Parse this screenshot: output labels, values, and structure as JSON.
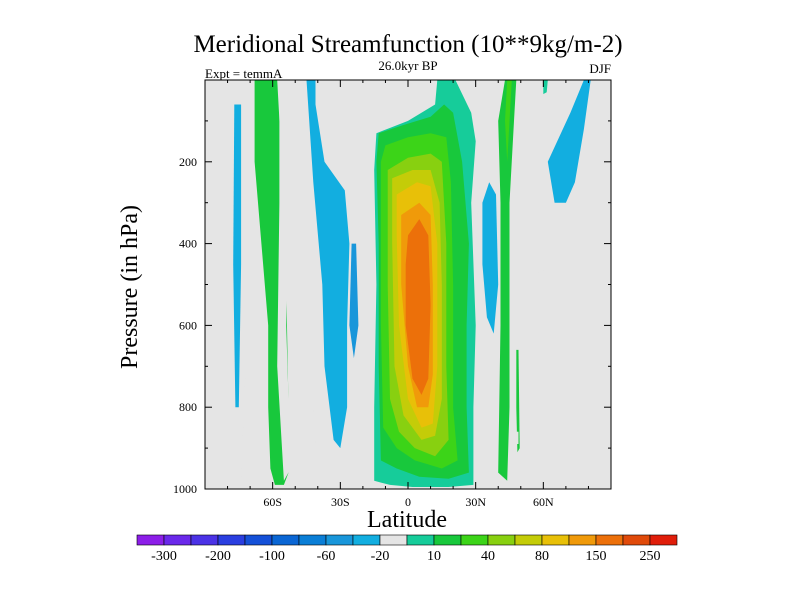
{
  "chart_data": {
    "type": "contour",
    "title": "Meridional Streamfunction (10**9kg/m-2)",
    "left_string": "Expt = temmA",
    "center_string": "26.0kyr BP",
    "right_string": "DJF",
    "xlabel": "Latitude",
    "ylabel": "Pressure (in hPa)",
    "xlim": [
      -90,
      90
    ],
    "ylim": [
      1000,
      0
    ],
    "x_ticks": [
      -60,
      -30,
      0,
      30,
      60
    ],
    "x_tick_labels": [
      "60S",
      "30S",
      "0",
      "30N",
      "60N"
    ],
    "y_ticks": [
      200,
      400,
      600,
      800,
      1000
    ],
    "y_tick_labels": [
      "200",
      "400",
      "600",
      "800",
      "1000"
    ],
    "background_color": "#e5e5e5",
    "colorbar": {
      "levels": [
        -300,
        -250,
        -200,
        -150,
        -100,
        -80,
        -60,
        -40,
        -20,
        -10,
        10,
        20,
        40,
        60,
        80,
        100,
        150,
        200,
        250,
        300
      ],
      "labels": [
        "-300",
        "-200",
        "-100",
        "-60",
        "-20",
        "10",
        "40",
        "80",
        "150",
        "250"
      ],
      "colors": [
        "#8c1ee8",
        "#6a28ea",
        "#4b32e6",
        "#2a3ee0",
        "#1450d8",
        "#0a66d4",
        "#0a7ed6",
        "#1896da",
        "#12aee0",
        "#e5e5e5",
        "#16cc9a",
        "#18c83c",
        "#3cd418",
        "#88d010",
        "#c4cc08",
        "#e8c008",
        "#f09a0a",
        "#ec700a",
        "#e04a0a",
        "#e01e0a"
      ]
    },
    "regions": [
      {
        "name": "south-polar-cell-outer",
        "level": -10,
        "outline": [
          [
            -78,
            0
          ],
          [
            -72,
            0
          ],
          [
            -72,
            400
          ],
          [
            -72,
            700
          ],
          [
            -74,
            980
          ],
          [
            -77,
            980
          ],
          [
            -78,
            800
          ],
          [
            -80,
            600
          ],
          [
            -79,
            300
          ]
        ]
      },
      {
        "name": "south-polar-cell-inner",
        "level": -20,
        "outline": [
          [
            -77,
            60
          ],
          [
            -74,
            60
          ],
          [
            -74,
            450
          ],
          [
            -75,
            800
          ],
          [
            -76.5,
            800
          ],
          [
            -77.5,
            450
          ]
        ]
      },
      {
        "name": "southern-ferrel-cell",
        "level": 20,
        "outline": [
          [
            -68,
            0
          ],
          [
            -58,
            0
          ],
          [
            -56,
            200
          ],
          [
            -54,
            500
          ],
          [
            -53,
            800
          ],
          [
            -53,
            960
          ],
          [
            -55,
            990
          ],
          [
            -59,
            990
          ],
          [
            -61,
            950
          ],
          [
            -62,
            800
          ],
          [
            -62,
            600
          ],
          [
            -65,
            400
          ],
          [
            -68,
            200
          ]
        ]
      },
      {
        "name": "south-midlat-negative",
        "level": -10,
        "outline": [
          [
            -57,
            0
          ],
          [
            -40,
            0
          ],
          [
            -40,
            60
          ],
          [
            -30,
            140
          ],
          [
            -22,
            230
          ],
          [
            -20,
            400
          ],
          [
            -22,
            600
          ],
          [
            -20,
            800
          ],
          [
            -18,
            960
          ],
          [
            -24,
            980
          ],
          [
            -35,
            980
          ],
          [
            -40,
            950
          ],
          [
            -42,
            800
          ],
          [
            -40,
            600
          ],
          [
            -45,
            300
          ],
          [
            -50,
            100
          ],
          [
            -53,
            200
          ],
          [
            -54,
            600
          ],
          [
            -52,
            950
          ],
          [
            -55,
            980
          ],
          [
            -58,
            700
          ],
          [
            -57,
            300
          ]
        ]
      },
      {
        "name": "south-midlat-negative-core",
        "level": -20,
        "outline": [
          [
            -45,
            0
          ],
          [
            -41,
            0
          ],
          [
            -41,
            60
          ],
          [
            -37,
            200
          ],
          [
            -28,
            270
          ],
          [
            -26,
            400
          ],
          [
            -27,
            600
          ],
          [
            -27,
            800
          ],
          [
            -30,
            900
          ],
          [
            -33,
            880
          ],
          [
            -37,
            700
          ],
          [
            -38,
            500
          ],
          [
            -42,
            250
          ]
        ]
      },
      {
        "name": "south-midlat-negative-core2",
        "level": -40,
        "outline": [
          [
            -25,
            400
          ],
          [
            -23,
            400
          ],
          [
            -22,
            600
          ],
          [
            -24,
            680
          ],
          [
            -26,
            600
          ]
        ]
      },
      {
        "name": "equatorial-negative-tongue",
        "level": -10,
        "outline": [
          [
            -3,
            0
          ],
          [
            3,
            0
          ],
          [
            2,
            60
          ],
          [
            -2,
            60
          ]
        ]
      },
      {
        "name": "hadley-cell-10",
        "level": 10,
        "outline": [
          [
            -15,
            220
          ],
          [
            -14,
            130
          ],
          [
            0,
            100
          ],
          [
            12,
            60
          ],
          [
            13,
            0
          ],
          [
            21,
            0
          ],
          [
            28,
            80
          ],
          [
            30,
            150
          ],
          [
            28,
            300
          ],
          [
            30,
            600
          ],
          [
            29,
            800
          ],
          [
            29,
            990
          ],
          [
            18,
            995
          ],
          [
            2,
            995
          ],
          [
            -8,
            990
          ],
          [
            -15,
            980
          ],
          [
            -15,
            800
          ],
          [
            -14,
            500
          ]
        ]
      },
      {
        "name": "hadley-cell-20",
        "level": 20,
        "outline": [
          [
            -14,
            200
          ],
          [
            -13,
            130
          ],
          [
            -2,
            110
          ],
          [
            10,
            90
          ],
          [
            16,
            60
          ],
          [
            20,
            80
          ],
          [
            24,
            200
          ],
          [
            27,
            400
          ],
          [
            26,
            600
          ],
          [
            26,
            800
          ],
          [
            27,
            960
          ],
          [
            18,
            975
          ],
          [
            5,
            970
          ],
          [
            -5,
            950
          ],
          [
            -12,
            930
          ],
          [
            -13,
            700
          ],
          [
            -13,
            400
          ]
        ]
      },
      {
        "name": "hadley-cell-40",
        "level": 40,
        "outline": [
          [
            -12,
            200
          ],
          [
            -10,
            160
          ],
          [
            0,
            140
          ],
          [
            10,
            130
          ],
          [
            17,
            140
          ],
          [
            19,
            250
          ],
          [
            20,
            500
          ],
          [
            20,
            800
          ],
          [
            22,
            930
          ],
          [
            15,
            950
          ],
          [
            3,
            930
          ],
          [
            -5,
            900
          ],
          [
            -11,
            850
          ],
          [
            -12,
            600
          ],
          [
            -12,
            350
          ]
        ]
      },
      {
        "name": "hadley-cell-60",
        "level": 60,
        "outline": [
          [
            -9,
            220
          ],
          [
            0,
            190
          ],
          [
            10,
            180
          ],
          [
            15,
            200
          ],
          [
            17,
            400
          ],
          [
            17,
            700
          ],
          [
            18,
            880
          ],
          [
            12,
            920
          ],
          [
            3,
            900
          ],
          [
            -4,
            860
          ],
          [
            -8,
            780
          ],
          [
            -9,
            500
          ]
        ]
      },
      {
        "name": "hadley-cell-80",
        "level": 80,
        "outline": [
          [
            -7,
            240
          ],
          [
            2,
            220
          ],
          [
            10,
            220
          ],
          [
            14,
            300
          ],
          [
            15,
            500
          ],
          [
            15,
            780
          ],
          [
            12,
            870
          ],
          [
            6,
            880
          ],
          [
            -2,
            820
          ],
          [
            -6,
            700
          ],
          [
            -7,
            400
          ]
        ]
      },
      {
        "name": "hadley-cell-100",
        "level": 100,
        "outline": [
          [
            -5,
            280
          ],
          [
            4,
            250
          ],
          [
            10,
            260
          ],
          [
            13,
            400
          ],
          [
            13,
            700
          ],
          [
            11,
            840
          ],
          [
            6,
            850
          ],
          [
            0,
            780
          ],
          [
            -4,
            600
          ],
          [
            -5,
            380
          ]
        ]
      },
      {
        "name": "hadley-cell-150",
        "level": 150,
        "outline": [
          [
            -3,
            330
          ],
          [
            5,
            300
          ],
          [
            10,
            330
          ],
          [
            11,
            500
          ],
          [
            11,
            720
          ],
          [
            9,
            800
          ],
          [
            4,
            800
          ],
          [
            0,
            700
          ],
          [
            -3,
            500
          ]
        ]
      },
      {
        "name": "hadley-cell-200",
        "level": 200,
        "outline": [
          [
            0,
            380
          ],
          [
            5,
            340
          ],
          [
            9,
            380
          ],
          [
            10,
            550
          ],
          [
            9,
            730
          ],
          [
            6,
            770
          ],
          [
            2,
            730
          ],
          [
            -1,
            600
          ],
          [
            -1,
            450
          ]
        ]
      },
      {
        "name": "nh-negative-cell",
        "level": -10,
        "outline": [
          [
            32,
            250
          ],
          [
            35,
            190
          ],
          [
            40,
            220
          ],
          [
            43,
            500
          ],
          [
            44,
            800
          ],
          [
            42,
            870
          ],
          [
            37,
            880
          ],
          [
            34,
            800
          ],
          [
            32,
            600
          ],
          [
            30,
            400
          ]
        ]
      },
      {
        "name": "nh-negative-cell-core",
        "level": -20,
        "outline": [
          [
            33,
            300
          ],
          [
            36,
            250
          ],
          [
            39,
            280
          ],
          [
            40,
            500
          ],
          [
            38,
            620
          ],
          [
            35,
            580
          ],
          [
            33,
            450
          ]
        ]
      },
      {
        "name": "nh-midlat-positive",
        "level": 20,
        "outline": [
          [
            43,
            0
          ],
          [
            48,
            0
          ],
          [
            47,
            100
          ],
          [
            45,
            300
          ],
          [
            45,
            800
          ],
          [
            44,
            980
          ],
          [
            40,
            960
          ],
          [
            41,
            600
          ],
          [
            41,
            300
          ],
          [
            40,
            100
          ]
        ]
      },
      {
        "name": "nh-midlat-positive-core",
        "level": 40,
        "outline": [
          [
            44,
            0
          ],
          [
            46,
            0
          ],
          [
            45,
            100
          ],
          [
            44,
            200
          ],
          [
            43,
            100
          ]
        ]
      },
      {
        "name": "nh-polar-positive-sliver",
        "level": 10,
        "outline": [
          [
            60,
            0
          ],
          [
            62,
            0
          ],
          [
            61,
            60
          ],
          [
            60,
            40
          ]
        ]
      },
      {
        "name": "nh-positive-small",
        "level": 20,
        "outline": [
          [
            48,
            660
          ],
          [
            49,
            660
          ],
          [
            49.5,
            900
          ],
          [
            48.5,
            910
          ],
          [
            48,
            800
          ]
        ]
      },
      {
        "name": "nh-negative-broad",
        "level": -10,
        "outline": [
          [
            48,
            60
          ],
          [
            58,
            40
          ],
          [
            72,
            0
          ],
          [
            82,
            0
          ],
          [
            80,
            80
          ],
          [
            78,
            200
          ],
          [
            75,
            300
          ],
          [
            72,
            400
          ],
          [
            65,
            450
          ],
          [
            55,
            480
          ],
          [
            49,
            480
          ],
          [
            48,
            300
          ],
          [
            48,
            150
          ]
        ]
      },
      {
        "name": "nh-negative-broad-core",
        "level": -20,
        "outline": [
          [
            62,
            200
          ],
          [
            72,
            80
          ],
          [
            78,
            0
          ],
          [
            81,
            0
          ],
          [
            78,
            120
          ],
          [
            74,
            250
          ],
          [
            70,
            300
          ],
          [
            65,
            300
          ]
        ]
      },
      {
        "name": "nh-negative-tiny",
        "level": -10,
        "outline": [
          [
            48,
            860
          ],
          [
            49,
            860
          ],
          [
            49,
            890
          ],
          [
            48,
            890
          ]
        ]
      }
    ]
  }
}
